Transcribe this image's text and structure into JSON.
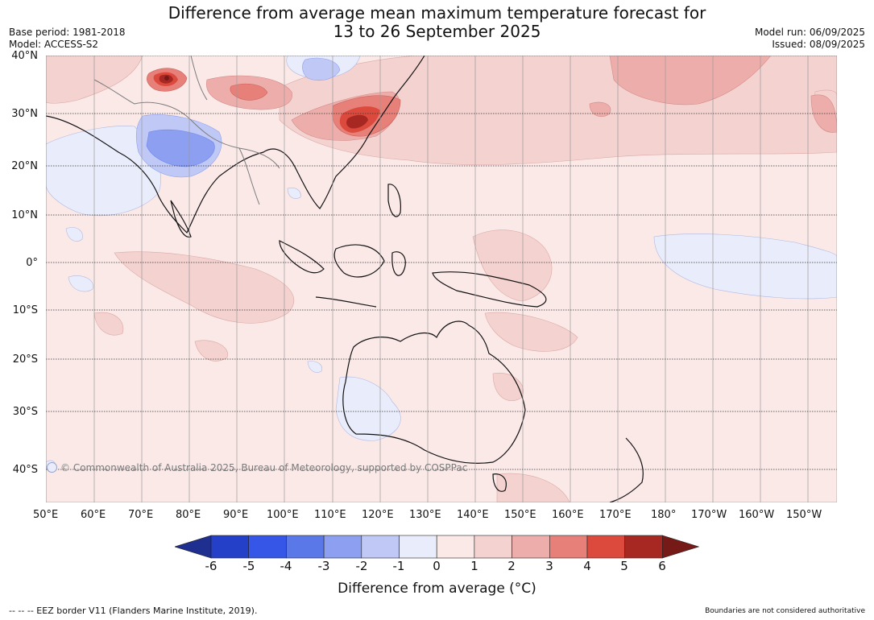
{
  "header": {
    "title_line1": "Difference from average mean maximum temperature forecast for",
    "title_line2": "13 to 26 September 2025",
    "base_period": "Base period: 1981-2018",
    "model": "Model: ACCESS-S2",
    "model_run": "Model run: 06/09/2025",
    "issued": "Issued: 08/09/2025"
  },
  "map": {
    "copyright": "© Commonwealth of Australia 2025, Bureau of Meteorology, supported by COSPPac",
    "lat_labels": [
      "40°N",
      "30°N",
      "20°N",
      "10°N",
      "0°",
      "10°S",
      "20°S",
      "30°S",
      "40°S"
    ],
    "lon_labels": [
      "50°E",
      "60°E",
      "70°E",
      "80°E",
      "90°E",
      "100°E",
      "110°E",
      "120°E",
      "130°E",
      "140°E",
      "150°E",
      "160°E",
      "170°E",
      "180°",
      "170°W",
      "160°W",
      "150°W"
    ]
  },
  "colorbar": {
    "ticks": [
      "-6",
      "-5",
      "-4",
      "-3",
      "-2",
      "-1",
      "0",
      "1",
      "2",
      "3",
      "4",
      "5",
      "6"
    ],
    "label": "Difference from average (°C)",
    "colors": [
      "#1f2f8f",
      "#2440c8",
      "#3556e6",
      "#5a78e8",
      "#8c9ff0",
      "#c0c9f6",
      "#e9ecfb",
      "#fbe9e8",
      "#f4d2d0",
      "#edaeab",
      "#e68079",
      "#db4a3d",
      "#a72823",
      "#751a16"
    ]
  },
  "footer": {
    "eez_note": "--  --  -- EEZ border V11 (Flanders Marine Institute, 2019).",
    "disclaimer": "Boundaries are not considered authoritative"
  }
}
